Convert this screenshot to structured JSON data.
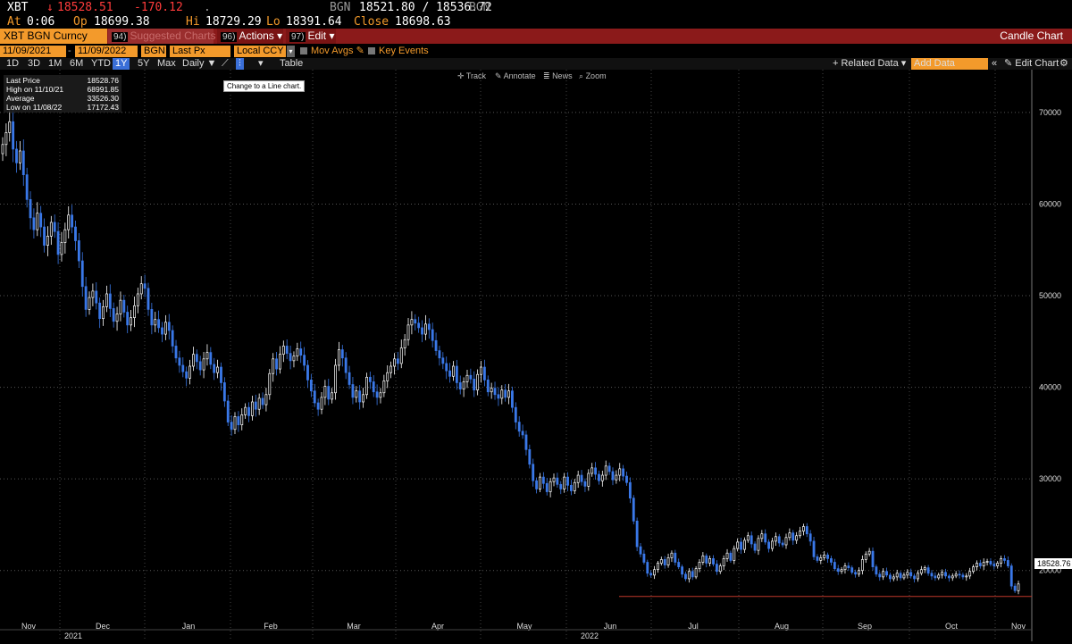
{
  "quote": {
    "ticker": "XBT",
    "last_arrow": "↓",
    "last": "18528.51",
    "change": "-170.12",
    "dot": ".",
    "bgn_label": "BGN",
    "bid_ask": "18521.80 / 18536.72",
    "bgn_label2": "BGN",
    "at_label": "At",
    "at_value": "0:06",
    "op_label": "Op",
    "op_value": "18699.38",
    "hi_label": "Hi",
    "hi_value": "18729.29",
    "lo_label": "Lo",
    "lo_value": "18391.64",
    "close_label": "Close",
    "close_value": "18698.63"
  },
  "toolbar": {
    "security": "XBT BGN Curncy",
    "suggested_num": "94)",
    "suggested": "Suggested Charts",
    "actions_num": "96)",
    "actions": "Actions",
    "edit_num": "97)",
    "edit": "Edit",
    "chart_name": "Candle Chart"
  },
  "settings": {
    "start_date": "11/09/2021",
    "end_date": "11/09/2022",
    "source": "BGN",
    "field": "Last Px",
    "currency": "Local CCY",
    "mov_avgs": "Mov Avgs",
    "key_events": "Key Events"
  },
  "ranges": [
    "1D",
    "3D",
    "1M",
    "6M",
    "YTD",
    "1Y",
    "5Y",
    "Max"
  ],
  "range_active": "1Y",
  "period": "Daily ▼",
  "table_label": "Table",
  "related_data": "+ Related Data ▾",
  "add_data_placeholder": "Add Data",
  "edit_chart": "Edit Chart",
  "tools": {
    "track": "Track",
    "annotate": "Annotate",
    "news": "News",
    "zoom": "Zoom"
  },
  "tooltip": "Change to a Line chart.",
  "legend": [
    {
      "label": "Last Price",
      "value": "18528.76"
    },
    {
      "label": "High on 11/10/21",
      "value": "68991.85"
    },
    {
      "label": "Average",
      "value": "33526.30"
    },
    {
      "label": "Low on 11/08/22",
      "value": "17172.43"
    }
  ],
  "price_tag": "18528.76",
  "colors": {
    "up": "#ffffff",
    "down": "#3a78e8",
    "low_line": "#c0392b",
    "accent": "#f39a2b"
  },
  "chart_data": {
    "type": "candlestick",
    "y_ticks": [
      "20000",
      "30000",
      "40000",
      "50000",
      "60000",
      "70000"
    ],
    "ylim": [
      15000,
      73500
    ],
    "x_month_labels": [
      "Nov",
      "Dec",
      "Jan",
      "Feb",
      "Mar",
      "Apr",
      "May",
      "Jun",
      "Jul",
      "Aug",
      "Sep",
      "Oct",
      "Nov"
    ],
    "x_year_labels": [
      "2021",
      "2022"
    ],
    "low_line_value": 17172.43,
    "closes": [
      66500,
      67800,
      68991,
      66000,
      64500,
      65800,
      63200,
      60500,
      58500,
      57200,
      59000,
      57500,
      55500,
      56500,
      58000,
      57000,
      54500,
      55800,
      57200,
      58800,
      57500,
      56000,
      53800,
      51000,
      48500,
      49800,
      50500,
      49200,
      47500,
      48800,
      50200,
      48600,
      47200,
      48000,
      49500,
      48200,
      46800,
      47600,
      48900,
      50200,
      51300,
      50800,
      48500,
      46800,
      47400,
      46500,
      45800,
      47100,
      46200,
      44500,
      43200,
      42400,
      41700,
      41000,
      42300,
      43600,
      42800,
      41900,
      43100,
      43800,
      42500,
      41600,
      42200,
      40500,
      38500,
      36200,
      35400,
      36800,
      35900,
      37000,
      37800,
      36900,
      38400,
      37600,
      38800,
      38100,
      39200,
      41500,
      43100,
      42000,
      43600,
      44500,
      43700,
      42900,
      43400,
      44200,
      43500,
      42400,
      40800,
      39600,
      38300,
      37600,
      38900,
      40100,
      38700,
      39400,
      42400,
      44100,
      43200,
      41600,
      40300,
      38900,
      39600,
      38400,
      39200,
      41100,
      40600,
      39500,
      38900,
      39400,
      40700,
      41600,
      42300,
      43100,
      42600,
      44300,
      45200,
      46800,
      47400,
      47000,
      46500,
      45800,
      46900,
      46300,
      45100,
      44000,
      43200,
      42600,
      41800,
      41200,
      42300,
      40500,
      39800,
      40600,
      41300,
      40900,
      39700,
      41400,
      42200,
      40800,
      39500,
      39900,
      39200,
      38800,
      39700,
      38900,
      39600,
      37800,
      36200,
      35200,
      34800,
      33200,
      31600,
      29800,
      28900,
      30200,
      29500,
      28600,
      29700,
      30100,
      29400,
      28900,
      30200,
      29300,
      28700,
      29600,
      30400,
      29700,
      29200,
      30600,
      31200,
      30500,
      29800,
      30400,
      31400,
      30800,
      29900,
      30400,
      31100,
      30300,
      29600,
      27900,
      25400,
      22600,
      21800,
      20900,
      19700,
      19500,
      20100,
      20800,
      21200,
      20600,
      21400,
      21900,
      20900,
      20400,
      19600,
      19100,
      19900,
      19300,
      20200,
      20900,
      21600,
      20800,
      21300,
      20700,
      19900,
      20500,
      21300,
      21900,
      21100,
      22400,
      23100,
      22300,
      23300,
      23800,
      22900,
      22200,
      23500,
      24000,
      23100,
      22400,
      23200,
      23700,
      23000,
      22800,
      23600,
      24100,
      23300,
      23800,
      24300,
      24800,
      24000,
      23200,
      21500,
      21100,
      21400,
      21700,
      21300,
      20900,
      20200,
      19900,
      20100,
      20500,
      20300,
      19800,
      19600,
      20000,
      21200,
      21800,
      22100,
      20400,
      19600,
      19300,
      19900,
      19500,
      19100,
      19300,
      19700,
      19200,
      19500,
      19800,
      19400,
      19100,
      19700,
      20100,
      20300,
      19700,
      19400,
      19200,
      19500,
      19800,
      19400,
      19200,
      19400,
      19600,
      19500,
      19300,
      19400,
      19900,
      20400,
      20800,
      20500,
      20900,
      21000,
      20700,
      20500,
      20800,
      21300,
      21100,
      20500,
      18300,
      17800,
      18530
    ]
  }
}
